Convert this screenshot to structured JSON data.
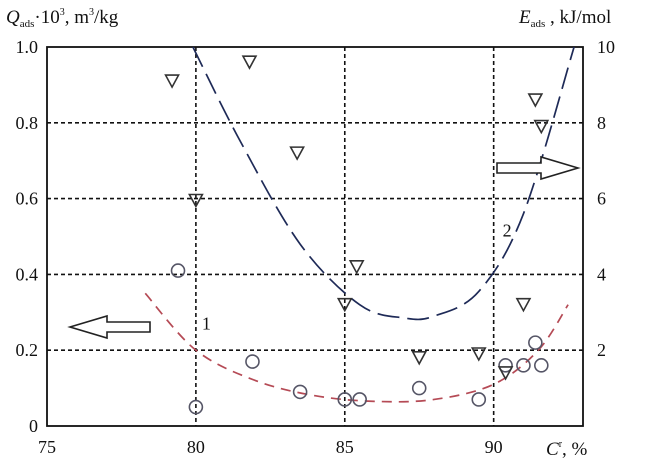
{
  "chart_data": {
    "type": "scatter",
    "xlabel": {
      "main": "C",
      "sup": "r",
      "rest": ", %"
    },
    "ylabel_left": {
      "main": "Q",
      "sub": "ads",
      "mid": "·10",
      "sup": "3",
      "rest": ", m",
      "sup2": "3",
      "rest2": "/kg"
    },
    "ylabel_right": {
      "main": "E",
      "sub": "ads",
      "rest": " , kJ/mol"
    },
    "xlim": [
      75,
      93
    ],
    "ylim_left": [
      0,
      1.0
    ],
    "ylim_right": [
      0,
      10
    ],
    "x_ticks": [
      "75",
      "80",
      "85",
      "90"
    ],
    "y_left_ticks": [
      "0",
      "0.2",
      "0.4",
      "0.6",
      "0.8",
      "1.0"
    ],
    "y_right_ticks": [
      "2",
      "4",
      "6",
      "8",
      "10"
    ],
    "grid": "dashed",
    "series": [
      {
        "marker": "circle",
        "axis": "left",
        "color": "#555566",
        "points": [
          [
            79.4,
            0.41
          ],
          [
            80.0,
            0.05
          ],
          [
            81.9,
            0.17
          ],
          [
            83.5,
            0.09
          ],
          [
            85.0,
            0.07
          ],
          [
            85.5,
            0.07
          ],
          [
            87.5,
            0.1
          ],
          [
            89.5,
            0.07
          ],
          [
            90.4,
            0.16
          ],
          [
            91.0,
            0.16
          ],
          [
            91.4,
            0.22
          ],
          [
            91.6,
            0.16
          ]
        ]
      },
      {
        "marker": "triangle",
        "axis": "right",
        "color": "#333333",
        "points": [
          [
            79.2,
            9.1
          ],
          [
            80.0,
            5.95
          ],
          [
            81.8,
            9.6
          ],
          [
            83.4,
            7.2
          ],
          [
            85.0,
            3.2
          ],
          [
            85.4,
            4.2
          ],
          [
            87.5,
            1.8
          ],
          [
            89.5,
            1.9
          ],
          [
            90.4,
            1.4
          ],
          [
            91.0,
            3.2
          ],
          [
            91.4,
            8.6
          ],
          [
            91.6,
            7.9
          ]
        ]
      }
    ],
    "curves": [
      {
        "label": "1",
        "axis": "left",
        "color": "#b54a55",
        "style": "dashed",
        "points": [
          [
            78.3,
            0.35
          ],
          [
            80,
            0.2
          ],
          [
            82,
            0.12
          ],
          [
            84,
            0.08
          ],
          [
            86,
            0.065
          ],
          [
            88,
            0.07
          ],
          [
            90,
            0.11
          ],
          [
            91.5,
            0.2
          ],
          [
            92.5,
            0.32
          ]
        ]
      },
      {
        "label": "2",
        "axis": "right",
        "color": "#1e2a57",
        "style": "long-dashed",
        "points": [
          [
            79.9,
            10.0
          ],
          [
            81.5,
            7.5
          ],
          [
            83.5,
            4.8
          ],
          [
            85.5,
            3.2
          ],
          [
            87,
            2.85
          ],
          [
            88,
            2.9
          ],
          [
            89.5,
            3.55
          ],
          [
            91,
            5.6
          ],
          [
            92.7,
            10.0
          ]
        ]
      }
    ],
    "annotations": [
      {
        "text": "1",
        "x": 80.2,
        "y_left": 0.255
      },
      {
        "text": "2",
        "x": 90.3,
        "y_right": 5.0
      }
    ],
    "arrows": [
      {
        "direction": "left",
        "points_to": "left axis"
      },
      {
        "direction": "right",
        "points_to": "right axis"
      }
    ]
  }
}
